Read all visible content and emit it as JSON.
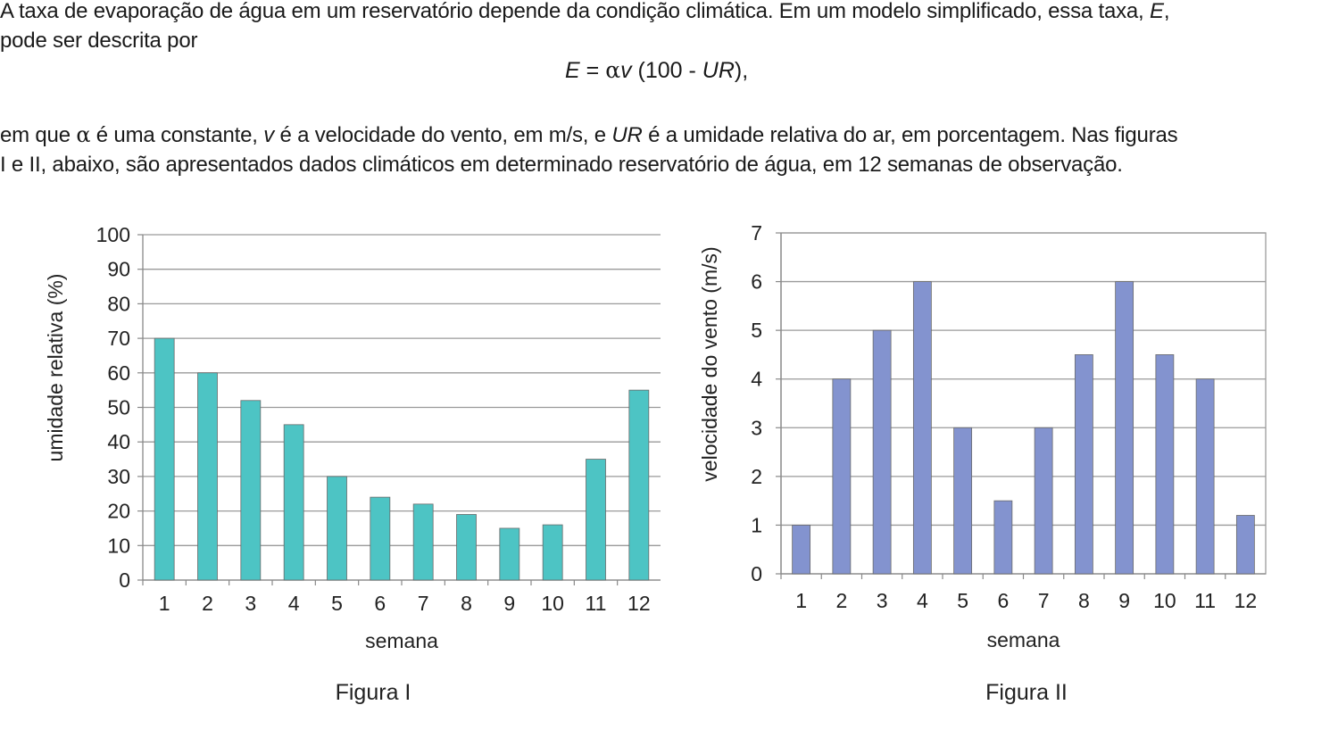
{
  "text": {
    "p1_a": "A taxa de evaporação de água em um reservatório depende da condição climática. Em um modelo simplificado, essa taxa, ",
    "p1_E": "E",
    "p1_b": ",",
    "p1_c": "pode ser descrita por",
    "eq_E": "E",
    "eq_eq": " = ",
    "eq_alpha": "α",
    "eq_v": "v",
    "eq_mid": " (100 - ",
    "eq_UR": "UR",
    "eq_end": "),",
    "p2_a": "em que ",
    "p2_alpha": "α",
    "p2_b": " é uma constante, ",
    "p2_v": "v",
    "p2_c": " é a velocidade do vento, em m/s, e ",
    "p2_UR": "UR",
    "p2_d": " é a umidade relativa do ar, em porcentagem. Nas figuras",
    "p2_e": "I e II, abaixo, são apresentados dados climáticos em determinado reservatório de água, em 12 semanas de observação."
  },
  "chart_data": [
    {
      "type": "bar",
      "caption": "Figura I",
      "xlabel": "semana",
      "ylabel": "umidade relativa (%)",
      "categories": [
        "1",
        "2",
        "3",
        "4",
        "5",
        "6",
        "7",
        "8",
        "9",
        "10",
        "11",
        "12"
      ],
      "values": [
        70,
        60,
        52,
        45,
        30,
        24,
        22,
        19,
        15,
        16,
        35,
        55
      ],
      "ylim": [
        0,
        100
      ],
      "yticks": [
        0,
        10,
        20,
        30,
        40,
        50,
        60,
        70,
        80,
        90,
        100
      ],
      "grid": true,
      "color": "#4dc4c4"
    },
    {
      "type": "bar",
      "caption": "Figura II",
      "xlabel": "semana",
      "ylabel": "velocidade do vento (m/s)",
      "categories": [
        "1",
        "2",
        "3",
        "4",
        "5",
        "6",
        "7",
        "8",
        "9",
        "10",
        "11",
        "12"
      ],
      "values": [
        1,
        4,
        5,
        6,
        3,
        1.5,
        3,
        4.5,
        6,
        4.5,
        4,
        1.2
      ],
      "ylim": [
        0,
        7
      ],
      "yticks": [
        0,
        1,
        2,
        3,
        4,
        5,
        6,
        7
      ],
      "grid": true,
      "color": "#8393cf"
    }
  ]
}
